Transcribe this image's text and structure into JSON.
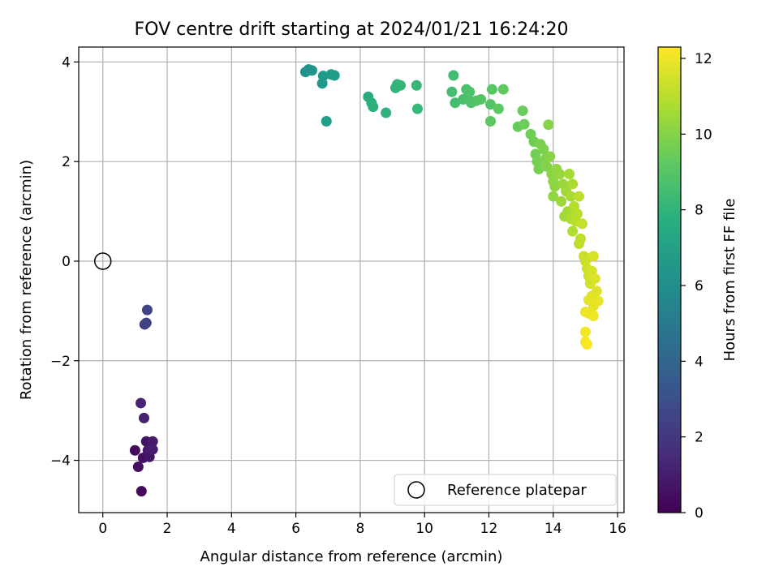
{
  "chart_data": {
    "type": "scatter",
    "title": "FOV centre drift starting at 2024/01/21 16:24:20",
    "xlabel": "Angular distance from reference (arcmin)",
    "ylabel": "Rotation from reference (arcmin)",
    "xlim": [
      -0.75,
      16.2
    ],
    "ylim": [
      -5.05,
      4.3
    ],
    "x_ticks": [
      0,
      2,
      4,
      6,
      8,
      10,
      12,
      14,
      16
    ],
    "x_tick_labels": [
      "0",
      "2",
      "4",
      "6",
      "8",
      "10",
      "12",
      "14",
      "16"
    ],
    "y_ticks": [
      -4,
      -2,
      0,
      2,
      4
    ],
    "y_tick_labels": [
      "−4",
      "−2",
      "0",
      "2",
      "4"
    ],
    "grid": true,
    "legend": {
      "placement": "lower-right",
      "entries": [
        "Reference platepar"
      ]
    },
    "colorbar": {
      "label": "Hours from first FF file",
      "range": [
        0,
        12.3
      ],
      "ticks": [
        0,
        2,
        4,
        6,
        8,
        10,
        12
      ],
      "tick_labels": [
        "0",
        "2",
        "4",
        "6",
        "8",
        "10",
        "12"
      ],
      "colormap": "viridis"
    },
    "reference_point": {
      "x": 0,
      "y": 0,
      "label": "Reference platepar"
    },
    "points_xyc": [
      [
        1.2,
        -4.62,
        0.2
      ],
      [
        1.0,
        -3.8,
        0.3
      ],
      [
        1.1,
        -4.13,
        0.4
      ],
      [
        1.25,
        -3.95,
        0.5
      ],
      [
        1.35,
        -3.62,
        0.6
      ],
      [
        1.45,
        -3.93,
        0.7
      ],
      [
        1.4,
        -3.8,
        0.8
      ],
      [
        1.55,
        -3.62,
        0.9
      ],
      [
        1.55,
        -3.78,
        1.0
      ],
      [
        1.28,
        -3.15,
        1.1
      ],
      [
        1.18,
        -2.85,
        1.2
      ],
      [
        1.3,
        -1.27,
        2.3
      ],
      [
        1.35,
        -1.24,
        2.4
      ],
      [
        1.38,
        -0.98,
        2.5
      ],
      [
        6.3,
        3.8,
        6.2
      ],
      [
        6.4,
        3.85,
        6.3
      ],
      [
        6.5,
        3.83,
        6.4
      ],
      [
        6.85,
        3.72,
        6.6
      ],
      [
        6.82,
        3.57,
        6.65
      ],
      [
        7.1,
        3.75,
        6.7
      ],
      [
        7.2,
        3.73,
        6.8
      ],
      [
        6.95,
        2.81,
        6.9
      ],
      [
        8.25,
        3.3,
        7.6
      ],
      [
        8.35,
        3.18,
        7.7
      ],
      [
        8.4,
        3.1,
        7.75
      ],
      [
        8.8,
        2.98,
        7.8
      ],
      [
        9.1,
        3.48,
        8.0
      ],
      [
        9.15,
        3.55,
        8.05
      ],
      [
        9.25,
        3.53,
        8.1
      ],
      [
        9.75,
        3.53,
        8.2
      ],
      [
        9.78,
        3.06,
        8.25
      ],
      [
        10.9,
        3.73,
        8.5
      ],
      [
        10.85,
        3.4,
        8.55
      ],
      [
        10.95,
        3.18,
        8.6
      ],
      [
        11.2,
        3.25,
        8.65
      ],
      [
        11.3,
        3.45,
        8.7
      ],
      [
        11.35,
        3.25,
        8.75
      ],
      [
        11.4,
        3.4,
        8.8
      ],
      [
        11.45,
        3.18,
        8.85
      ],
      [
        11.6,
        3.22,
        8.9
      ],
      [
        11.75,
        3.25,
        8.95
      ],
      [
        12.05,
        3.15,
        9.0
      ],
      [
        12.1,
        3.45,
        9.05
      ],
      [
        12.05,
        2.81,
        9.1
      ],
      [
        12.3,
        3.06,
        9.15
      ],
      [
        12.45,
        3.45,
        9.2
      ],
      [
        12.9,
        2.7,
        9.4
      ],
      [
        13.05,
        3.02,
        9.45
      ],
      [
        13.1,
        2.75,
        9.5
      ],
      [
        13.3,
        2.55,
        9.55
      ],
      [
        13.4,
        2.4,
        9.6
      ],
      [
        13.45,
        2.15,
        9.65
      ],
      [
        13.5,
        2.0,
        9.7
      ],
      [
        13.55,
        1.85,
        9.75
      ],
      [
        13.6,
        2.35,
        9.8
      ],
      [
        13.7,
        2.25,
        9.85
      ],
      [
        13.75,
        2.05,
        9.9
      ],
      [
        13.8,
        1.9,
        9.95
      ],
      [
        13.85,
        2.74,
        10.0
      ],
      [
        13.9,
        2.1,
        10.05
      ],
      [
        13.95,
        1.75,
        10.1
      ],
      [
        14.0,
        1.6,
        10.15
      ],
      [
        14.05,
        1.5,
        10.2
      ],
      [
        14.0,
        1.3,
        10.25
      ],
      [
        14.1,
        1.85,
        10.3
      ],
      [
        14.2,
        1.75,
        10.35
      ],
      [
        14.3,
        1.55,
        10.4
      ],
      [
        14.25,
        1.2,
        10.45
      ],
      [
        14.35,
        0.9,
        10.5
      ],
      [
        14.4,
        1.4,
        10.55
      ],
      [
        14.45,
        1.0,
        10.6
      ],
      [
        14.5,
        1.75,
        10.65
      ],
      [
        14.55,
        1.3,
        10.7
      ],
      [
        14.6,
        1.55,
        10.75
      ],
      [
        14.55,
        0.85,
        10.8
      ],
      [
        14.6,
        0.6,
        10.85
      ],
      [
        14.65,
        1.1,
        10.9
      ],
      [
        14.7,
        0.8,
        10.95
      ],
      [
        14.75,
        0.95,
        11.0
      ],
      [
        14.8,
        1.3,
        11.05
      ],
      [
        14.85,
        0.45,
        11.1
      ],
      [
        14.8,
        0.35,
        11.15
      ],
      [
        14.9,
        0.75,
        11.2
      ],
      [
        14.95,
        0.1,
        11.3
      ],
      [
        15.0,
        0.0,
        11.35
      ],
      [
        15.05,
        -0.15,
        11.4
      ],
      [
        15.1,
        -0.3,
        11.45
      ],
      [
        15.15,
        -0.45,
        11.5
      ],
      [
        15.2,
        -0.2,
        11.55
      ],
      [
        15.25,
        0.1,
        11.6
      ],
      [
        15.3,
        -0.35,
        11.65
      ],
      [
        15.35,
        -0.6,
        11.7
      ],
      [
        15.2,
        -0.7,
        11.75
      ],
      [
        15.1,
        -0.78,
        11.8
      ],
      [
        15.25,
        -0.9,
        11.85
      ],
      [
        15.4,
        -0.8,
        11.9
      ],
      [
        15.0,
        -1.02,
        11.95
      ],
      [
        15.1,
        -1.05,
        12.0
      ],
      [
        15.25,
        -1.1,
        12.05
      ],
      [
        15.0,
        -1.42,
        12.1
      ],
      [
        15.0,
        -1.62,
        12.15
      ],
      [
        15.05,
        -1.67,
        12.2
      ]
    ]
  }
}
